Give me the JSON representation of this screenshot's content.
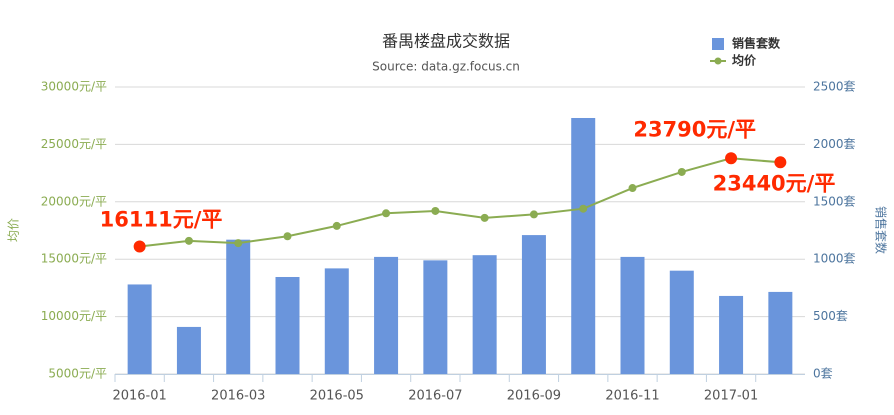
{
  "chart_data": {
    "type": "bar_line",
    "title": "番禺楼盘成交数据",
    "subtitle": "Source: data.gz.focus.cn",
    "categories": [
      "2016-01",
      null,
      "2016-03",
      null,
      "2016-05",
      null,
      "2016-07",
      null,
      "2016-09",
      null,
      "2016-11",
      null,
      "2017-01",
      null
    ],
    "series": [
      {
        "name": "销售套数",
        "type": "bar",
        "axis": "y2",
        "color": "#6a95dc",
        "values": [
          780,
          410,
          1170,
          845,
          920,
          1020,
          990,
          1035,
          1210,
          2230,
          1020,
          900,
          680,
          715
        ]
      },
      {
        "name": "均价",
        "type": "line",
        "axis": "y",
        "color": "#8bac52",
        "highlight_color": "#ff2a00",
        "values": [
          16111,
          16600,
          16400,
          17000,
          17900,
          19000,
          19200,
          18600,
          18900,
          19400,
          21200,
          22600,
          23790,
          23440
        ],
        "value_labels": [
          "16111元/平",
          null,
          null,
          null,
          null,
          null,
          null,
          null,
          null,
          null,
          null,
          null,
          "23790元/平",
          "23440元/平"
        ]
      }
    ],
    "ylabel": "均价",
    "y2label": "销售套数",
    "ylim": [
      5000,
      30000
    ],
    "yticks": [
      {
        "value": 5000,
        "label": "5000元/平"
      },
      {
        "value": 10000,
        "label": "10000元/平"
      },
      {
        "value": 15000,
        "label": "15000元/平"
      },
      {
        "value": 20000,
        "label": "20000元/平"
      },
      {
        "value": 25000,
        "label": "25000元/平"
      },
      {
        "value": 30000,
        "label": "30000元/平"
      }
    ],
    "y2lim": [
      0,
      2500
    ],
    "y2ticks": [
      {
        "value": 0,
        "label": "0套"
      },
      {
        "value": 500,
        "label": "500套"
      },
      {
        "value": 1000,
        "label": "1000套"
      },
      {
        "value": 1500,
        "label": "1500套"
      },
      {
        "value": 2000,
        "label": "2000套"
      },
      {
        "value": 2500,
        "label": "2500套"
      }
    ],
    "grid": true,
    "legend": "top-right"
  }
}
